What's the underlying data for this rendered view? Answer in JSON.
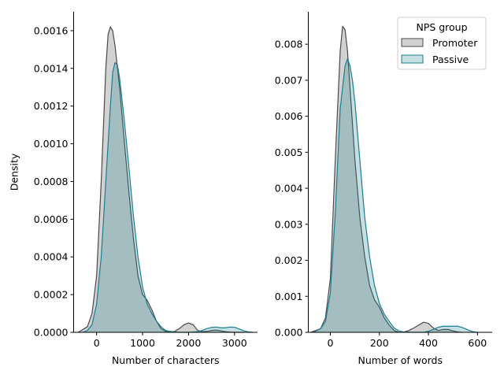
{
  "chart_data": [
    {
      "type": "area",
      "xlabel": "Number of characters",
      "ylabel": "Density",
      "xlim": [
        -500,
        3500
      ],
      "ylim": [
        0,
        0.0017
      ],
      "xticks": [
        0,
        1000,
        2000,
        3000
      ],
      "xtick_labels": [
        "0",
        "1000",
        "2000",
        "3000"
      ],
      "yticks": [
        0,
        0.0002,
        0.0004,
        0.0006,
        0.0008,
        0.001,
        0.0012,
        0.0014,
        0.0016
      ],
      "ytick_labels": [
        "0.0000",
        "0.0002",
        "0.0004",
        "0.0006",
        "0.0008",
        "0.0010",
        "0.0012",
        "0.0014",
        "0.0016"
      ],
      "grid": false,
      "series": [
        {
          "name": "Promoter",
          "color": "#4a4a4a",
          "x": [
            -400,
            -200,
            -100,
            0,
            100,
            200,
            250,
            300,
            350,
            400,
            500,
            600,
            700,
            800,
            900,
            1000,
            1100,
            1200,
            1300,
            1400,
            1500,
            1600,
            1700,
            1800,
            1900,
            2000,
            2100,
            2200,
            2300,
            2400,
            2500,
            2600,
            2700,
            2800,
            2900,
            3000,
            3100,
            3200
          ],
          "y": [
            0.0,
            3e-05,
            0.0001,
            0.0003,
            0.0008,
            0.0014,
            0.00158,
            0.00162,
            0.0016,
            0.00152,
            0.0013,
            0.00102,
            0.00075,
            0.0005,
            0.0003,
            0.0002,
            0.00017,
            0.00012,
            6e-05,
            2e-05,
            5e-06,
            0.0,
            5e-06,
            2e-05,
            4e-05,
            5e-05,
            4e-05,
            1e-05,
            3e-06,
            5e-06,
            1e-05,
            1.2e-05,
            8e-06,
            3e-06,
            1e-06,
            0.0,
            0.0,
            0.0
          ]
        },
        {
          "name": "Passive",
          "color": "#1a7f8e",
          "x": [
            -300,
            -200,
            -100,
            0,
            100,
            200,
            300,
            350,
            400,
            450,
            500,
            600,
            700,
            800,
            900,
            1000,
            1100,
            1200,
            1300,
            1400,
            1500,
            1600,
            1800,
            2000,
            2200,
            2300,
            2400,
            2500,
            2600,
            2700,
            2800,
            2900,
            3000,
            3100,
            3200,
            3300,
            3400
          ],
          "y": [
            0.0,
            1e-05,
            4e-05,
            0.00015,
            0.0004,
            0.0008,
            0.0012,
            0.00138,
            0.00143,
            0.00142,
            0.00135,
            0.00113,
            0.00088,
            0.00062,
            0.0004,
            0.00024,
            0.00015,
            0.0001,
            6e-05,
            3e-05,
            1e-05,
            5e-06,
            0.0,
            0.0,
            3e-06,
            1e-05,
            2e-05,
            2.6e-05,
            2.8e-05,
            2.4e-05,
            2.4e-05,
            2.8e-05,
            2.7e-05,
            1.8e-05,
            8e-06,
            2e-06,
            0.0
          ]
        }
      ]
    },
    {
      "type": "area",
      "xlabel": "Number of words",
      "ylabel": "",
      "xlim": [
        -90,
        660
      ],
      "ylim": [
        0,
        0.0089
      ],
      "xticks": [
        0,
        200,
        400,
        600
      ],
      "xtick_labels": [
        "0",
        "200",
        "400",
        "600"
      ],
      "yticks": [
        0,
        0.001,
        0.002,
        0.003,
        0.004,
        0.005,
        0.006,
        0.007,
        0.008
      ],
      "ytick_labels": [
        "0.000",
        "0.001",
        "0.002",
        "0.003",
        "0.004",
        "0.005",
        "0.006",
        "0.007",
        "0.008"
      ],
      "grid": false,
      "legend": {
        "title": "NPS group",
        "placement": "top-right",
        "entries": [
          "Promoter",
          "Passive"
        ]
      },
      "series": [
        {
          "name": "Promoter",
          "color": "#4a4a4a",
          "x": [
            -80,
            -40,
            -20,
            0,
            20,
            40,
            50,
            60,
            70,
            80,
            100,
            120,
            140,
            160,
            180,
            200,
            220,
            240,
            260,
            280,
            300,
            320,
            340,
            360,
            380,
            400,
            420,
            440,
            460,
            480,
            500,
            520,
            540
          ],
          "y": [
            0.0,
            0.0001,
            0.0004,
            0.0015,
            0.0048,
            0.0078,
            0.0085,
            0.0084,
            0.0078,
            0.0068,
            0.0048,
            0.0032,
            0.0021,
            0.0013,
            0.0009,
            0.0007,
            0.0004,
            0.0002,
            5e-05,
            0.0,
            1e-05,
            5e-05,
            0.00012,
            0.0002,
            0.00028,
            0.00025,
            0.00012,
            5e-05,
            8e-05,
            8e-05,
            4e-05,
            1e-05,
            0.0
          ]
        },
        {
          "name": "Passive",
          "color": "#1a7f8e",
          "x": [
            -70,
            -40,
            -20,
            0,
            20,
            40,
            60,
            70,
            80,
            90,
            100,
            120,
            140,
            160,
            180,
            200,
            220,
            240,
            260,
            280,
            300,
            340,
            380,
            400,
            420,
            440,
            460,
            480,
            500,
            520,
            540,
            560,
            580,
            600
          ],
          "y": [
            0.0,
            0.0001,
            0.0003,
            0.0011,
            0.0033,
            0.0062,
            0.0074,
            0.0076,
            0.0074,
            0.007,
            0.0064,
            0.0048,
            0.0032,
            0.0021,
            0.0013,
            0.0008,
            0.0005,
            0.0003,
            0.00012,
            4e-05,
            1e-05,
            0.0,
            0.0,
            3e-05,
            8e-05,
            0.00014,
            0.00017,
            0.00017,
            0.00017,
            0.00017,
            0.00013,
            7e-05,
            2e-05,
            0.0
          ]
        }
      ]
    }
  ]
}
